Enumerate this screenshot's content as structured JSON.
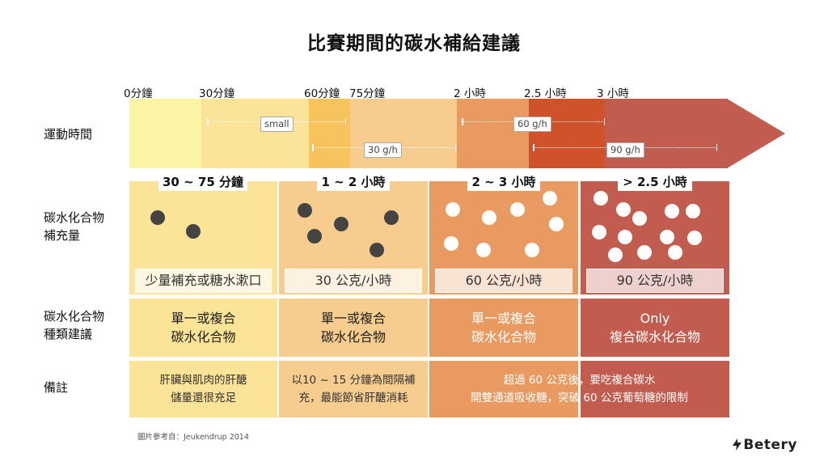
{
  "title": "比賽期間的碳水補給建議",
  "colors": {
    "pale_yellow": "#fdf5a6",
    "light_yellow": "#fbe397",
    "gold": "#f6c35c",
    "peach": "#f7cc8f",
    "orange": "#e89a60",
    "rust": "#d0522a",
    "red_brown": "#c25c4f"
  },
  "timeline": {
    "ticks": [
      "0分鐘",
      "30分鐘",
      "60分鐘",
      "75分鐘",
      "2 小時",
      "2.5 小時",
      "3 小時"
    ],
    "bars": [
      "small",
      "30 g/h",
      "60 g/h",
      "90 g/h"
    ]
  },
  "row_labels": {
    "time": "運動時間",
    "amount": "碳水化合物\n補充量",
    "type": "碳水化合物\n種類建議",
    "notes": "備註"
  },
  "columns": [
    {
      "duration": "30 ~ 75 分鐘",
      "rate": "少量補充或糖水漱口",
      "type": "單一或複合\n碳水化合物",
      "note": "肝臟與肌肉的肝醣\n儲量還很充足"
    },
    {
      "duration": "1 ~ 2 小時",
      "rate": "30 公克/小時",
      "type": "單一或複合\n碳水化合物",
      "note": "以10 ~ 15 分鐘為間隔補\n充，最能節省肝醣消耗"
    },
    {
      "duration": "2 ~ 3 小時",
      "rate": "60 公克/小時",
      "type": "單一或複合\n碳水化合物"
    },
    {
      "duration": "> 2.5 小時",
      "rate": "90 公克/小時",
      "type": "Only\n複合碳水化合物"
    }
  ],
  "merged_note": "超過 60 公克後，要吃複合碳水\n開雙通道吸收糖，突破 60 公克葡萄糖的限制",
  "source": "圖片參考自：Jeukendrup 2014",
  "logo": "Betery",
  "icons": {
    "logo": "bolt-icon"
  }
}
